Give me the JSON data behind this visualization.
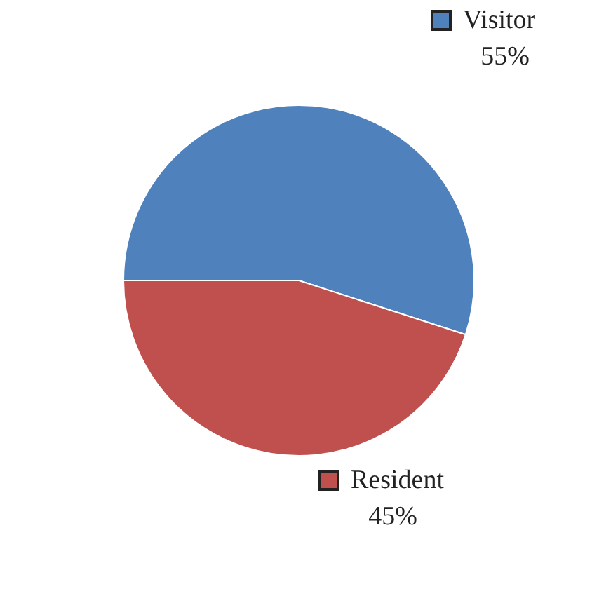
{
  "chart_data": {
    "type": "pie",
    "categories": [
      "Visitor",
      "Resident"
    ],
    "values": [
      55,
      45
    ],
    "colors": [
      "#4f81bd",
      "#c0504d"
    ],
    "value_labels": [
      "55%",
      "45%"
    ],
    "legend": "right"
  }
}
